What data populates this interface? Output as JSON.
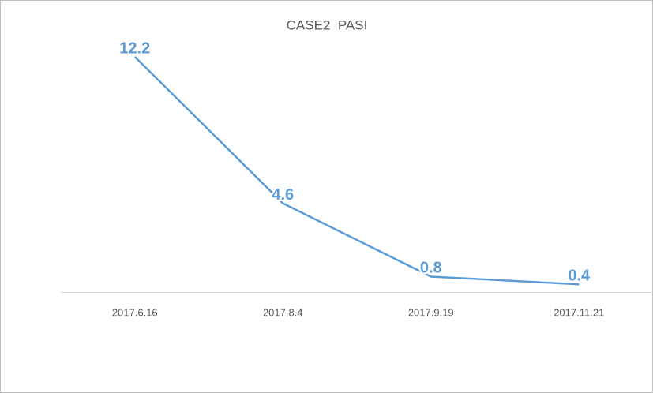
{
  "chart_data": {
    "type": "line",
    "title": "CASE2  PASI",
    "categories": [
      "2017.6.16",
      "2017.8.4",
      "2017.9.19",
      "2017.11.21"
    ],
    "values": [
      12.2,
      4.6,
      0.8,
      0.4
    ],
    "color": "#5b9bd5"
  }
}
